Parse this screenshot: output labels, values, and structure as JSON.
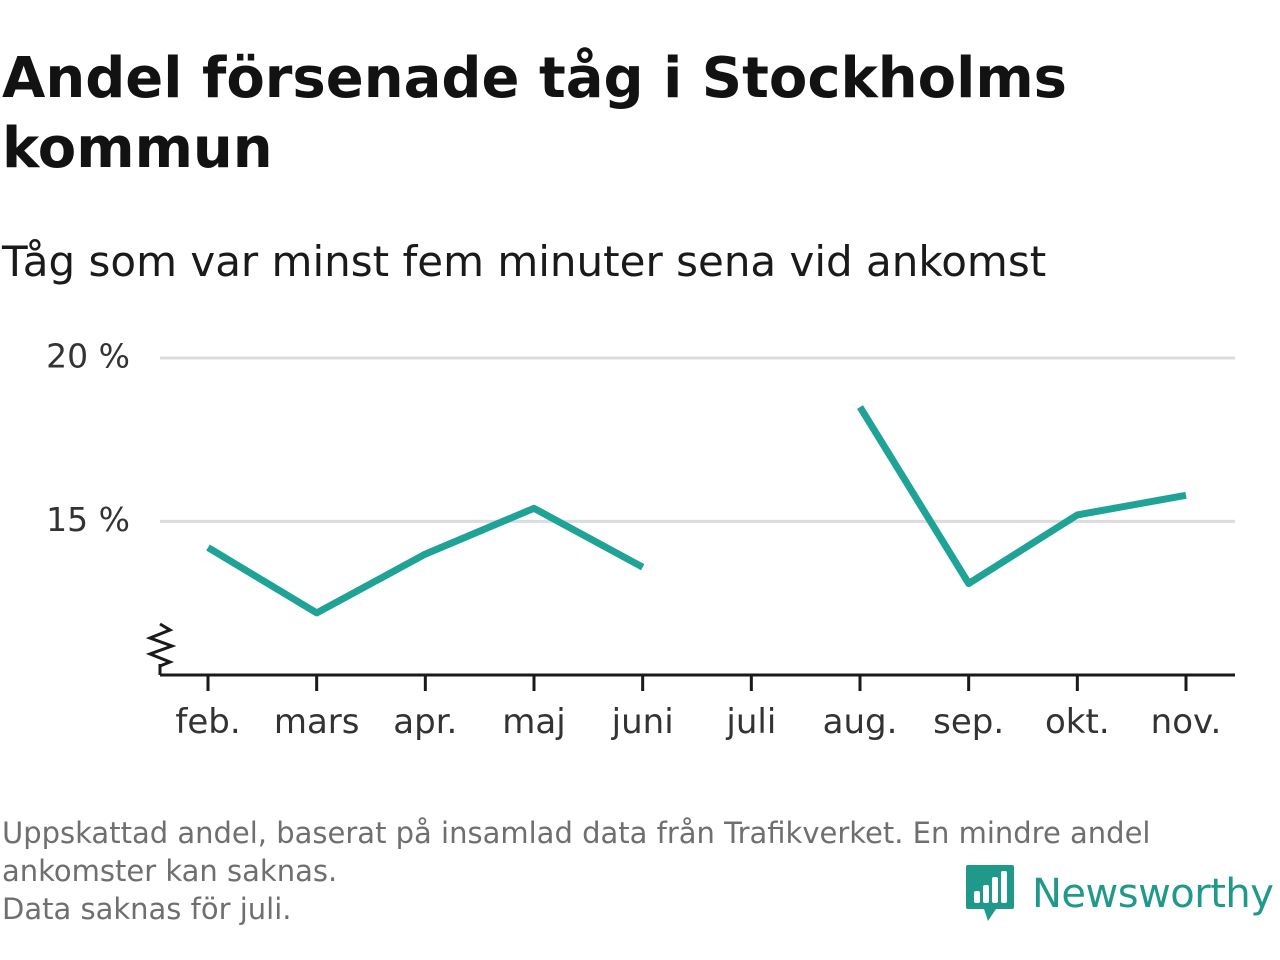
{
  "header": {
    "title": "Andel försenade tåg i Stockholms kommun",
    "subtitle": "Tåg som var minst fem minuter sena vid ankomst"
  },
  "chart_data": {
    "type": "line",
    "categories": [
      "feb.",
      "mars",
      "apr.",
      "maj",
      "juni",
      "juli",
      "aug.",
      "sep.",
      "okt.",
      "nov."
    ],
    "series": [
      {
        "values": [
          14.2,
          12.2,
          14.0,
          15.4,
          13.6,
          null,
          18.5,
          13.1,
          15.2,
          15.8
        ]
      }
    ],
    "y_ticks": [
      15,
      20
    ],
    "y_tick_labels": [
      "15 %",
      "20 %"
    ],
    "ylim": [
      10.3,
      20
    ],
    "y_axis_break": true,
    "grid": true,
    "line_color": "#1fa396"
  },
  "footnote": {
    "line1": "Uppskattad andel, baserat på insamlad data från Trafikverket. En mindre andel",
    "line2": "ankomster kan saknas.",
    "line3": "Data saknas för juli."
  },
  "brand": {
    "name": "Newsworthy",
    "icon": "newsworthy-logo-icon",
    "color": "#1f9a8a"
  }
}
